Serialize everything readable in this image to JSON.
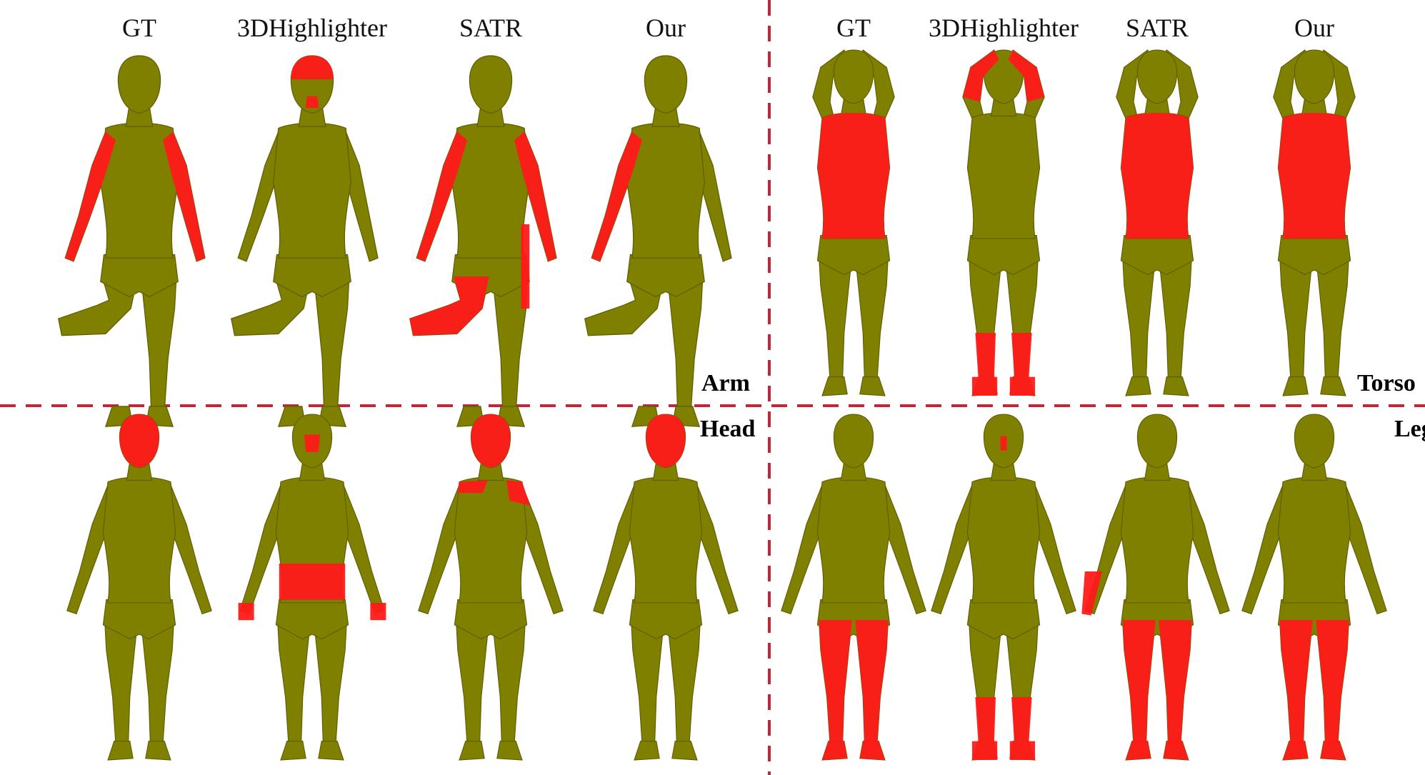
{
  "column_headers_left": [
    "GT",
    "3DHighlighter",
    "SATR",
    "Our"
  ],
  "column_headers_right": [
    "GT",
    "3DHighlighter",
    "SATR",
    "Our"
  ],
  "region_labels": {
    "top_left": "Arm",
    "top_right": "Torso",
    "bottom_left": "Head",
    "bottom_right": "Leg"
  },
  "colors": {
    "body": "#7f7f00",
    "highlight": "#ff1a1a",
    "divider": "#c0283a",
    "background": "#ffffff"
  },
  "panels": [
    {
      "name": "arm",
      "pose": "raised-knee",
      "highlights": [
        [
          "arms"
        ],
        [
          "head-top",
          "chin"
        ],
        [
          "arms",
          "raised-leg",
          "hip-side"
        ],
        [
          "arms-partial"
        ]
      ]
    },
    {
      "name": "torso",
      "pose": "arms-up",
      "highlights": [
        [
          "torso"
        ],
        [
          "shins",
          "forearms-up"
        ],
        [
          "torso"
        ],
        [
          "torso"
        ]
      ]
    },
    {
      "name": "head",
      "pose": "a-pose",
      "highlights": [
        [
          "head"
        ],
        [
          "face",
          "belly",
          "hands"
        ],
        [
          "head",
          "shoulders"
        ],
        [
          "head"
        ]
      ]
    },
    {
      "name": "leg",
      "pose": "a-pose",
      "highlights": [
        [
          "legs"
        ],
        [
          "shins",
          "nose"
        ],
        [
          "legs",
          "forearm"
        ],
        [
          "legs"
        ]
      ]
    }
  ]
}
